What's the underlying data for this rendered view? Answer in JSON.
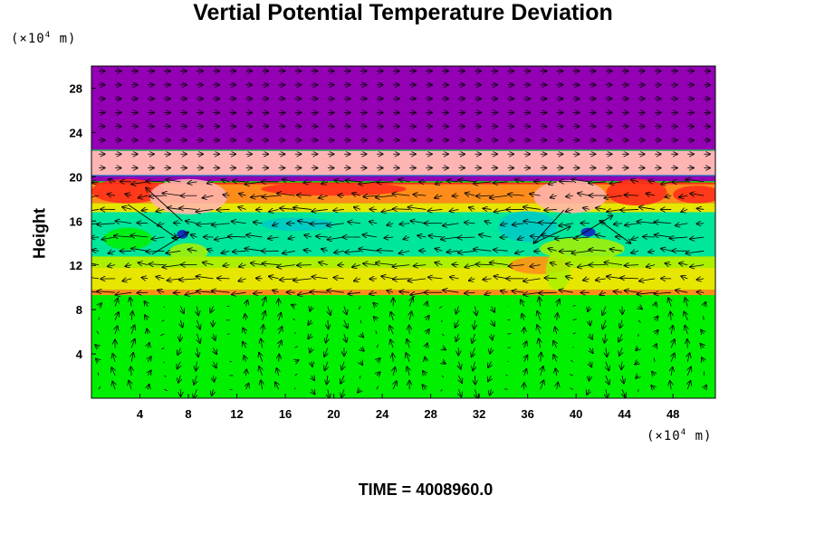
{
  "chart_data": {
    "type": "heatmap",
    "title": "Vertial Potential Temperature Deviation",
    "ylabel": "Height",
    "y_unit_prefix": "(×10",
    "y_unit_exp": "4",
    "y_unit_suffix": " m)",
    "x_unit_prefix": "(×10",
    "x_unit_exp": "4",
    "x_unit_suffix": " m)",
    "x_ticks": [
      "4",
      "8",
      "12",
      "16",
      "20",
      "24",
      "28",
      "32",
      "36",
      "40",
      "44",
      "48"
    ],
    "y_ticks": [
      "4",
      "8",
      "12",
      "16",
      "20",
      "24",
      "28"
    ],
    "xlim": [
      0,
      51.5
    ],
    "ylim": [
      0,
      30
    ],
    "footer": "TIME = 4008960.0",
    "colors": {
      "violet": "#9400b4",
      "pink": "#ffb4b4",
      "red": "#ff2a1a",
      "orange": "#ff8c1a",
      "yellow": "#e6e600",
      "lime": "#aaf000",
      "green": "#00f000",
      "cyan_green": "#00e69a",
      "cyan": "#00c8c8",
      "blue": "#1414c8",
      "arrow": "#000000"
    },
    "bands": [
      {
        "y0": 22.4,
        "y1": 30,
        "color": "violet"
      },
      {
        "y0": 20.1,
        "y1": 22.4,
        "color": "pink"
      },
      {
        "y0": 19.6,
        "y1": 20.1,
        "color": "violet"
      },
      {
        "y0": 17.6,
        "y1": 19.4,
        "color": "orange"
      },
      {
        "y0": 16.8,
        "y1": 17.6,
        "color": "yellow"
      },
      {
        "y0": 12.8,
        "y1": 16.8,
        "color": "cyan_green"
      },
      {
        "y0": 11.8,
        "y1": 12.8,
        "color": "lime"
      },
      {
        "y0": 9.8,
        "y1": 11.8,
        "color": "yellow"
      },
      {
        "y0": 9.3,
        "y1": 9.8,
        "color": "orange"
      },
      {
        "y0": 0,
        "y1": 9.3,
        "color": "green"
      }
    ],
    "patches": [
      {
        "x": 3,
        "y": 18.7,
        "rx": 3,
        "ry": 1.1,
        "color": "red"
      },
      {
        "x": 8,
        "y": 18.2,
        "rx": 3.2,
        "ry": 1.6,
        "color": "pink"
      },
      {
        "x": 20,
        "y": 18.9,
        "rx": 6,
        "ry": 0.6,
        "color": "red"
      },
      {
        "x": 39.5,
        "y": 18.2,
        "rx": 3,
        "ry": 1.5,
        "color": "pink"
      },
      {
        "x": 45,
        "y": 18.6,
        "rx": 2.5,
        "ry": 1.2,
        "color": "red"
      },
      {
        "x": 50,
        "y": 18.4,
        "rx": 2,
        "ry": 0.8,
        "color": "red"
      },
      {
        "x": 36,
        "y": 15.5,
        "rx": 2.4,
        "ry": 1.4,
        "color": "cyan"
      },
      {
        "x": 17,
        "y": 15.7,
        "rx": 3,
        "ry": 0.6,
        "color": "cyan"
      },
      {
        "x": 3,
        "y": 14.4,
        "rx": 2,
        "ry": 1.0,
        "color": "green"
      },
      {
        "x": 8,
        "y": 13.2,
        "rx": 1.6,
        "ry": 0.8,
        "color": "lime"
      },
      {
        "x": 40.5,
        "y": 13.5,
        "rx": 3.5,
        "ry": 1.0,
        "color": "lime"
      },
      {
        "x": 37,
        "y": 12,
        "rx": 2.5,
        "ry": 0.8,
        "color": "orange"
      },
      {
        "x": 38.5,
        "y": 11.5,
        "rx": 1.0,
        "ry": 1.8,
        "color": "lime"
      },
      {
        "x": 7.5,
        "y": 14.8,
        "rx": 0.45,
        "ry": 0.4,
        "color": "blue"
      },
      {
        "x": 41,
        "y": 15,
        "rx": 0.6,
        "ry": 0.4,
        "color": "blue"
      }
    ]
  }
}
